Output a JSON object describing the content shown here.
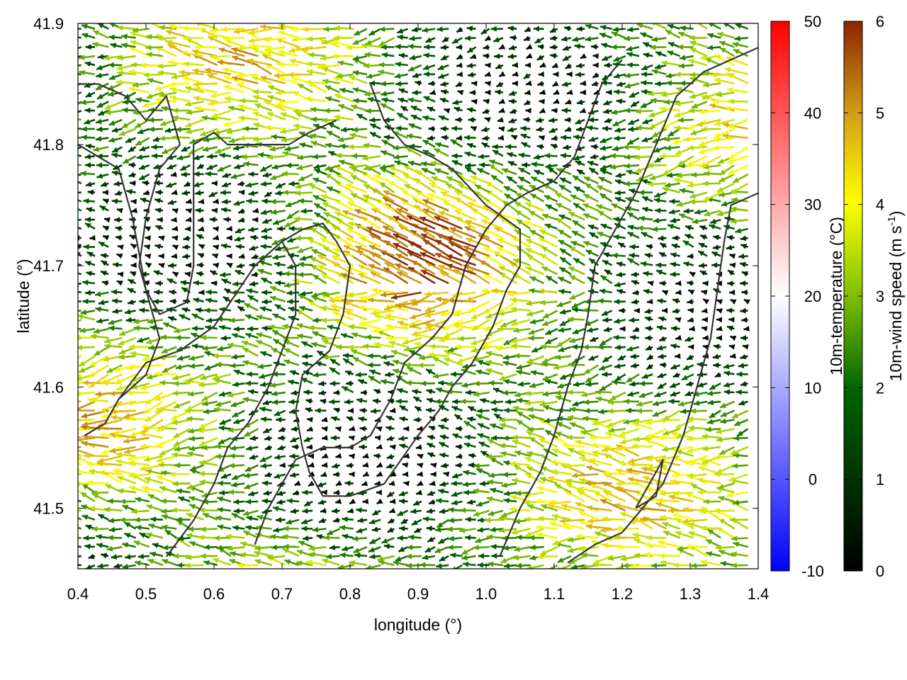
{
  "chart_data": {
    "type": "vector-field",
    "xlabel": "longitude (°)",
    "ylabel": "latitude (°)",
    "xlim": [
      0.4,
      1.4
    ],
    "ylim": [
      41.45,
      41.9
    ],
    "xticks": [
      "0.4",
      "0.5",
      "0.6",
      "0.7",
      "0.8",
      "0.9",
      "1.0",
      "1.1",
      "1.2",
      "1.3",
      "1.4"
    ],
    "yticks": [
      "41.5",
      "41.6",
      "41.7",
      "41.8",
      "41.9"
    ],
    "grid": false,
    "colorbars": [
      {
        "label": "10m-temperature (°C)",
        "range": [
          -10,
          50
        ],
        "ticks": [
          "-10",
          "0",
          "10",
          "20",
          "30",
          "40",
          "50"
        ],
        "colors": [
          "#0000ff",
          "#ffffff",
          "#ff0000"
        ]
      },
      {
        "label": "10m-wind speed (m s-1)",
        "label_main": "10m-wind speed (m s",
        "label_sup": "-1",
        "label_end": ")",
        "range": [
          0,
          6
        ],
        "ticks": [
          "0",
          "1",
          "2",
          "3",
          "4",
          "5",
          "6"
        ],
        "colors": [
          "#000000",
          "#006400",
          "#7fbf00",
          "#ffff00",
          "#d4a017",
          "#8b2500"
        ]
      }
    ],
    "contour_color": "#333333",
    "contours": [
      [
        [
          0.4,
          41.85
        ],
        [
          0.43,
          41.85
        ],
        [
          0.47,
          41.84
        ],
        [
          0.5,
          41.82
        ],
        [
          0.53,
          41.84
        ],
        [
          0.55,
          41.8
        ],
        [
          0.52,
          41.78
        ],
        [
          0.5,
          41.74
        ],
        [
          0.49,
          41.7
        ],
        [
          0.5,
          41.68
        ],
        [
          0.52,
          41.66
        ],
        [
          0.56,
          41.67
        ],
        [
          0.57,
          41.7
        ],
        [
          0.57,
          41.75
        ],
        [
          0.57,
          41.8
        ],
        [
          0.6,
          41.81
        ],
        [
          0.62,
          41.8
        ],
        [
          0.67,
          41.8
        ],
        [
          0.71,
          41.8
        ],
        [
          0.74,
          41.81
        ],
        [
          0.78,
          41.82
        ]
      ],
      [
        [
          0.4,
          41.8
        ],
        [
          0.46,
          41.78
        ],
        [
          0.48,
          41.74
        ],
        [
          0.5,
          41.68
        ],
        [
          0.52,
          41.64
        ],
        [
          0.5,
          41.61
        ],
        [
          0.46,
          41.59
        ],
        [
          0.44,
          41.57
        ],
        [
          0.41,
          41.56
        ]
      ],
      [
        [
          0.46,
          41.59
        ],
        [
          0.5,
          41.62
        ],
        [
          0.55,
          41.63
        ],
        [
          0.6,
          41.65
        ],
        [
          0.66,
          41.7
        ],
        [
          0.7,
          41.72
        ],
        [
          0.73,
          41.73
        ],
        [
          0.76,
          41.735
        ],
        [
          0.78,
          41.72
        ],
        [
          0.8,
          41.7
        ],
        [
          0.79,
          41.66
        ],
        [
          0.77,
          41.63
        ],
        [
          0.73,
          41.61
        ],
        [
          0.72,
          41.58
        ],
        [
          0.73,
          41.55
        ],
        [
          0.74,
          41.53
        ],
        [
          0.76,
          41.51
        ],
        [
          0.8,
          41.51
        ],
        [
          0.85,
          41.52
        ],
        [
          0.9,
          41.56
        ],
        [
          0.93,
          41.58
        ],
        [
          0.95,
          41.6
        ],
        [
          0.98,
          41.62
        ],
        [
          1.01,
          41.65
        ],
        [
          1.03,
          41.68
        ],
        [
          1.05,
          41.7
        ],
        [
          1.05,
          41.73
        ],
        [
          1.0,
          41.75
        ],
        [
          0.95,
          41.78
        ],
        [
          0.92,
          41.79
        ],
        [
          0.88,
          41.8
        ],
        [
          0.85,
          41.82
        ],
        [
          0.83,
          41.85
        ]
      ],
      [
        [
          0.66,
          41.47
        ],
        [
          0.68,
          41.5
        ],
        [
          0.7,
          41.52
        ],
        [
          0.72,
          41.54
        ],
        [
          0.76,
          41.55
        ],
        [
          0.8,
          41.55
        ],
        [
          0.83,
          41.56
        ],
        [
          0.86,
          41.59
        ],
        [
          0.88,
          41.62
        ],
        [
          0.92,
          41.64
        ],
        [
          0.95,
          41.66
        ],
        [
          0.97,
          41.7
        ],
        [
          1.0,
          41.73
        ],
        [
          1.03,
          41.75
        ],
        [
          1.06,
          41.76
        ],
        [
          1.1,
          41.77
        ],
        [
          1.13,
          41.79
        ],
        [
          1.15,
          41.82
        ],
        [
          1.17,
          41.85
        ],
        [
          1.2,
          41.87
        ]
      ],
      [
        [
          1.02,
          41.46
        ],
        [
          1.05,
          41.5
        ],
        [
          1.08,
          41.53
        ],
        [
          1.1,
          41.56
        ],
        [
          1.12,
          41.6
        ],
        [
          1.14,
          41.63
        ],
        [
          1.15,
          41.66
        ],
        [
          1.16,
          41.7
        ],
        [
          1.19,
          41.73
        ],
        [
          1.22,
          41.76
        ],
        [
          1.25,
          41.8
        ],
        [
          1.28,
          41.84
        ],
        [
          1.32,
          41.86
        ],
        [
          1.36,
          41.87
        ],
        [
          1.4,
          41.88
        ]
      ],
      [
        [
          1.12,
          41.455
        ],
        [
          1.16,
          41.47
        ],
        [
          1.2,
          41.48
        ],
        [
          1.23,
          41.5
        ],
        [
          1.26,
          41.52
        ],
        [
          1.29,
          41.56
        ],
        [
          1.31,
          41.6
        ],
        [
          1.33,
          41.64
        ],
        [
          1.34,
          41.68
        ],
        [
          1.35,
          41.72
        ],
        [
          1.36,
          41.75
        ],
        [
          1.4,
          41.76
        ]
      ],
      [
        [
          0.53,
          41.46
        ],
        [
          0.57,
          41.49
        ],
        [
          0.6,
          41.52
        ],
        [
          0.62,
          41.55
        ],
        [
          0.65,
          41.57
        ],
        [
          0.68,
          41.6
        ],
        [
          0.7,
          41.63
        ],
        [
          0.72,
          41.66
        ],
        [
          0.72,
          41.7
        ],
        [
          0.7,
          41.72
        ]
      ],
      [
        [
          1.22,
          41.5
        ],
        [
          1.24,
          41.52
        ],
        [
          1.26,
          41.54
        ],
        [
          1.25,
          41.51
        ],
        [
          1.22,
          41.5
        ]
      ]
    ],
    "vector_field": {
      "grid_spacing_deg": [
        0.02,
        0.0075
      ],
      "components": "u,v",
      "dominant_direction": "westward (east wind)",
      "speed_range": [
        0,
        6
      ]
    }
  }
}
